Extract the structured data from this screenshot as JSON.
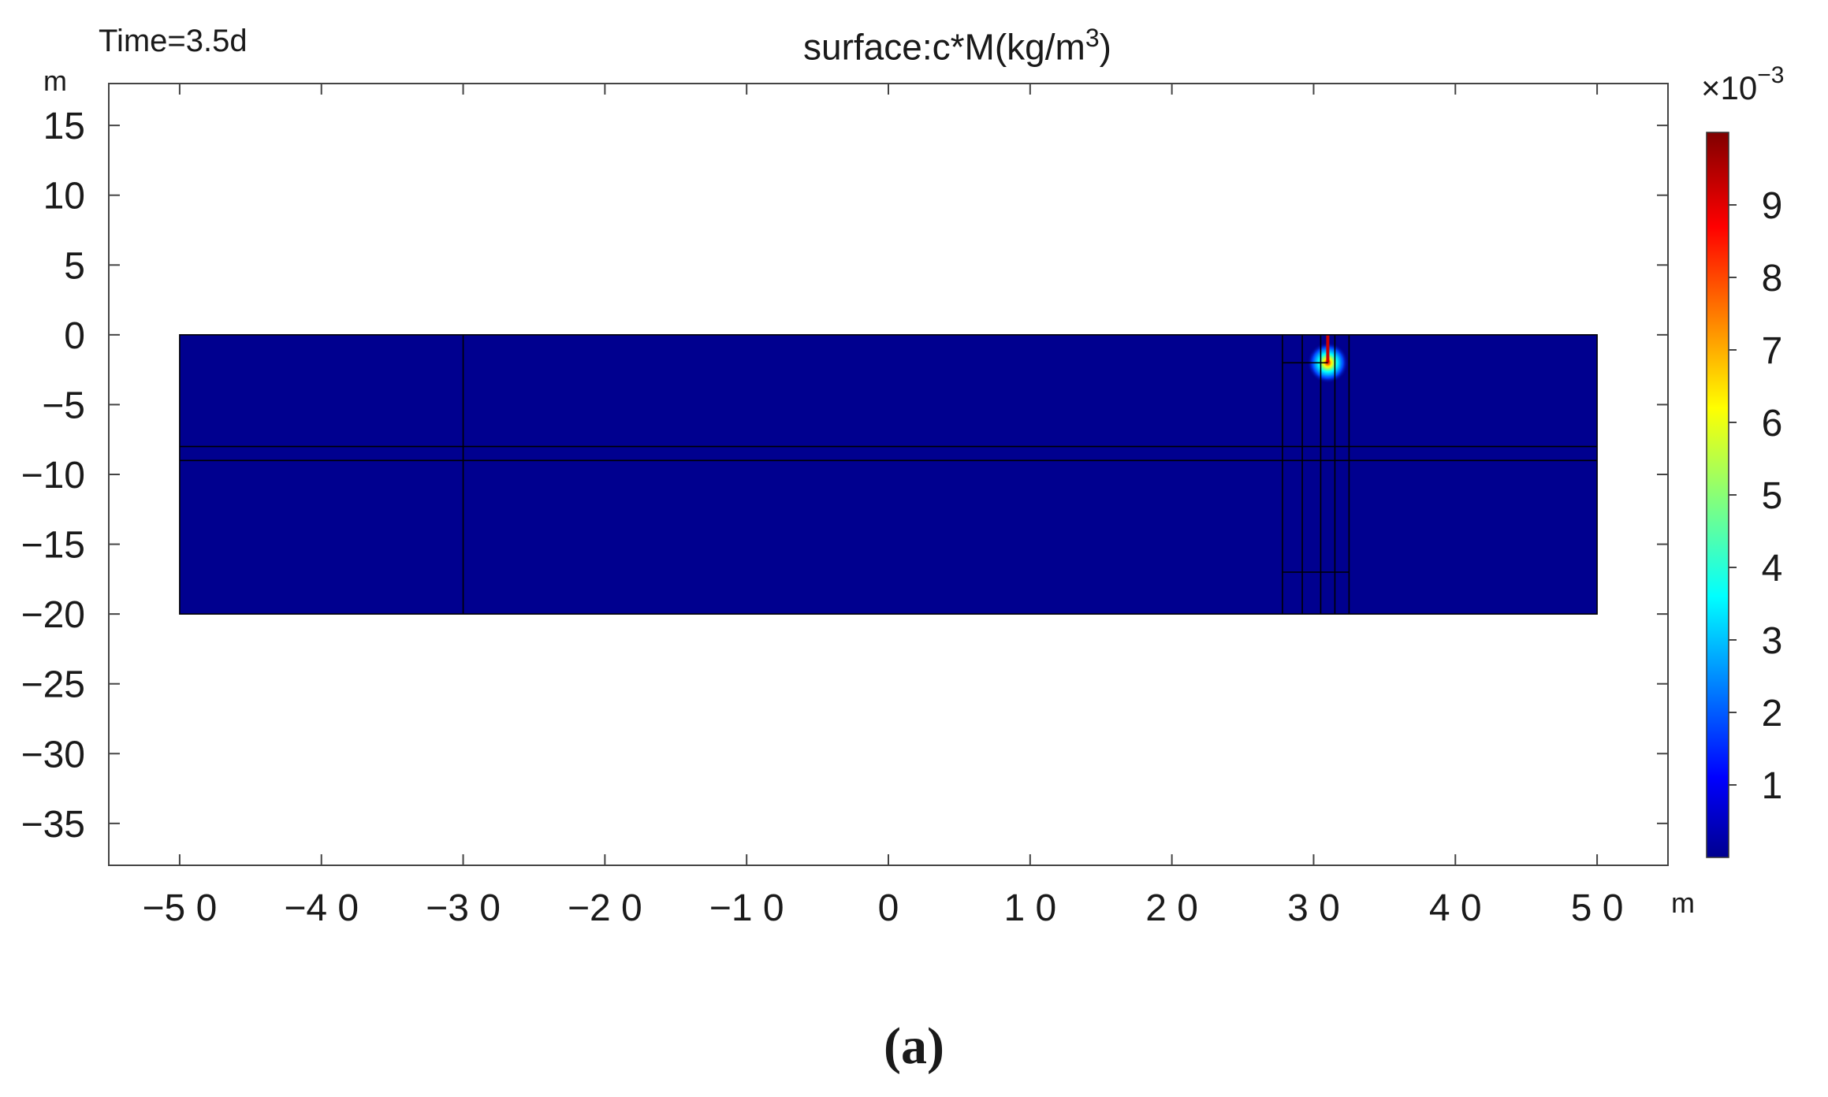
{
  "figure": {
    "time_label": "Time=3.5d",
    "title_main": "surface:c*M(kg/m",
    "title_sup": "3",
    "title_end": ")",
    "y_unit": "m",
    "x_unit": "m",
    "colorbar_multiplier": "×10",
    "colorbar_exponent": "−3",
    "panel_label": "(a)"
  },
  "chart_data": {
    "type": "heatmap",
    "title": "surface:c*M(kg/m3)",
    "xlabel": "m",
    "ylabel": "m",
    "xlim": [
      -55,
      55
    ],
    "ylim": [
      -38,
      18
    ],
    "x_ticks": [
      -50,
      -40,
      -30,
      -20,
      -10,
      0,
      10,
      20,
      30,
      40,
      50
    ],
    "x_tick_labels": [
      "−5 0",
      "−4 0",
      "−3 0",
      "−2 0",
      "−1 0",
      "0",
      "1 0",
      "2 0",
      "3 0",
      "4 0",
      "5 0"
    ],
    "y_ticks": [
      15,
      10,
      5,
      0,
      -5,
      -10,
      -15,
      -20,
      -25,
      -30,
      -35
    ],
    "y_tick_labels": [
      "15",
      "10",
      "5",
      "0",
      "−5",
      "−10",
      "−15",
      "−20",
      "−25",
      "−30",
      "−35"
    ],
    "domain": {
      "x": [
        -50,
        50
      ],
      "y": [
        -20,
        0
      ]
    },
    "background_value": 0.0,
    "background_color": "#00008f",
    "internal_boundaries": {
      "vertical_x": [
        -30,
        27.8,
        29.2,
        30.5,
        31.5,
        32.5
      ],
      "horizontal_y": [
        -8,
        -9
      ],
      "local_horizontals": [
        {
          "y": -2,
          "x": [
            27.8,
            31
          ]
        },
        {
          "y": -17,
          "x": [
            27.8,
            32.5
          ]
        }
      ]
    },
    "source": {
      "x": 31,
      "y": -2,
      "peak": 10,
      "radius": 0.9,
      "well_top": 0,
      "well_bottom": -2
    },
    "colorbar": {
      "min": 0,
      "max": 10,
      "units_scale": "×10^-3",
      "ticks": [
        1,
        2,
        3,
        4,
        5,
        6,
        7,
        8,
        9
      ],
      "tick_labels": [
        "1",
        "2",
        "3",
        "4",
        "5",
        "6",
        "7",
        "8",
        "9"
      ],
      "colormap": "jet"
    },
    "colors": {
      "axis": "#444444",
      "grid_line": "#000000"
    }
  }
}
